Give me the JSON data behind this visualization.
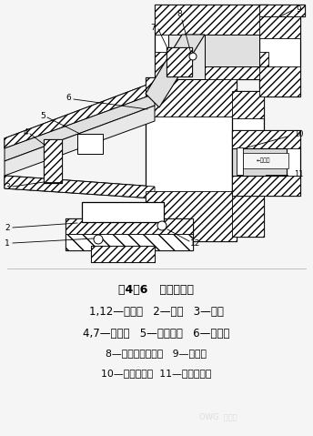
{
  "bg_color": "#f5f5f5",
  "fig_width": 3.44,
  "fig_height": 4.79,
  "dpi": 100,
  "title": "图4－6   旁侧式机头",
  "legend_lines": [
    "1,12—测温孔   2—口模   3—芯模",
    "4,7—电热圈   5—调节螺钉   6—机头体",
    "8—熔融塑料测温孔   9—连接器",
    "10—高温计测孔  11—芯模加热器"
  ],
  "line_color": "#000000",
  "hatch_color": "#000000",
  "fill_color": "#d0d0d0"
}
